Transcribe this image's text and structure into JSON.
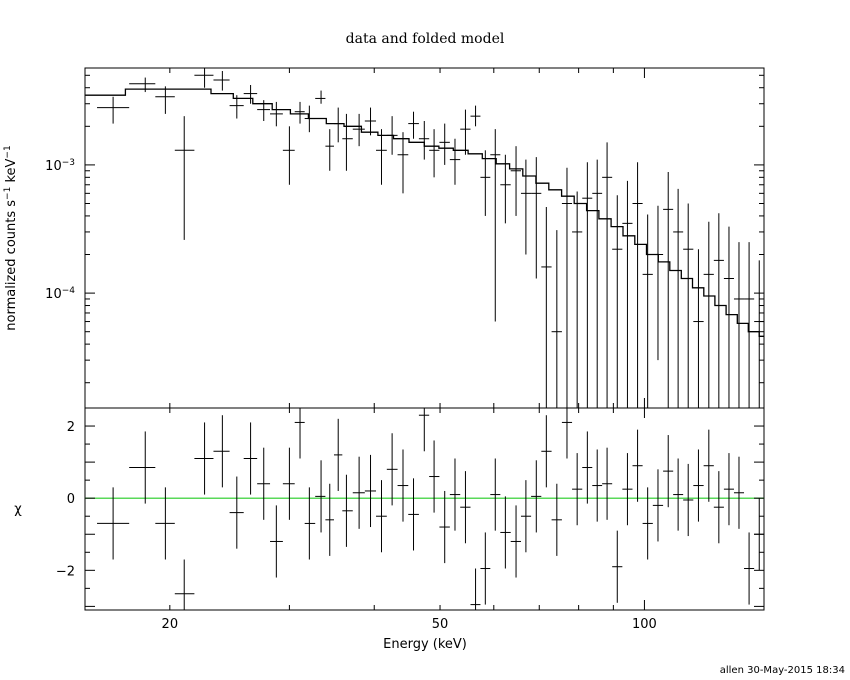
{
  "chart_data": [
    {
      "type": "scatter",
      "panel": "top",
      "title": "data and folded model",
      "xlabel": "",
      "ylabel": "normalized counts s^-1 keV^-1",
      "ylabel_parts": [
        "normalized counts s",
        "−1",
        " keV",
        "−1"
      ],
      "xscale": "log",
      "yscale": "log",
      "xlim": [
        15,
        150
      ],
      "ylim": [
        1.27e-05,
        0.0057
      ],
      "yticks": [
        {
          "value": 0.001,
          "base": "10",
          "exp": "−3"
        },
        {
          "value": 0.0001,
          "base": "10",
          "exp": "−4"
        }
      ],
      "series": [
        {
          "type": "errorbar",
          "x": [
            16.5,
            18.4,
            19.7,
            21.0,
            22.5,
            23.9,
            25.1,
            26.3,
            27.5,
            28.7,
            30.0,
            31.1,
            32.1,
            33.4,
            34.4,
            35.4,
            36.4,
            38.0,
            39.5,
            41.0,
            42.5,
            44.1,
            45.7,
            47.4,
            49.0,
            50.8,
            52.6,
            54.5,
            56.4,
            58.3,
            60.3,
            62.4,
            64.7,
            66.9,
            69.3,
            71.7,
            74.3,
            76.9,
            79.6,
            82.4,
            85.2,
            88.1,
            91.2,
            94.4,
            97.7,
            101.1,
            104.7,
            108.4,
            112.1,
            116.0,
            120.1,
            124.4,
            128.7,
            133.2,
            137.8,
            142.6,
            147.6
          ],
          "y": [
            0.0028,
            0.0043,
            0.0034,
            0.0013,
            0.005,
            0.0046,
            0.0029,
            0.0036,
            0.0027,
            0.0025,
            0.0013,
            0.0026,
            0.0023,
            0.0033,
            0.0014,
            0.0021,
            0.0016,
            0.0019,
            0.0022,
            0.0013,
            0.0017,
            0.0012,
            0.0021,
            0.0016,
            0.0013,
            0.0015,
            0.0011,
            0.0019,
            0.0024,
            0.0008,
            0.0012,
            0.0007,
            0.0009,
            0.0006,
            0.0006,
            0.00016,
            5e-05,
            0.0005,
            0.0003,
            0.00055,
            0.0006,
            0.0008,
            0.00022,
            0.00035,
            0.0005,
            0.00014,
            0.0002,
            0.00045,
            0.0003,
            0.00022,
            6e-05,
            0.00014,
            0.00018,
            0.00013,
            9e-05,
            9e-05,
            6e-05
          ],
          "ylo": [
            0.0021,
            0.0037,
            0.0025,
            0.00026,
            0.004,
            0.0038,
            0.0023,
            0.003,
            0.0022,
            0.002,
            0.0007,
            0.0021,
            0.0018,
            0.003,
            0.0009,
            0.0015,
            0.0009,
            0.0014,
            0.0017,
            0.0007,
            0.0012,
            0.0006,
            0.0016,
            0.0011,
            0.0008,
            0.001,
            0.0007,
            0.0012,
            0.002,
            0.0004,
            6e-05,
            0.00035,
            0.0004,
            0.0002,
            0.00013,
            1.27e-05,
            1.27e-05,
            1.27e-05,
            1.27e-05,
            1.27e-05,
            1.27e-05,
            1.27e-05,
            1.27e-05,
            1.27e-05,
            1.27e-05,
            1.27e-05,
            3e-05,
            1.27e-05,
            1.27e-05,
            1.27e-05,
            1.27e-05,
            1.27e-05,
            1.27e-05,
            1.27e-05,
            1.27e-05,
            1.27e-05,
            1.27e-05
          ],
          "yhi": [
            0.0034,
            0.0048,
            0.0041,
            0.0024,
            0.0058,
            0.0054,
            0.0035,
            0.0042,
            0.0032,
            0.0031,
            0.002,
            0.0031,
            0.0029,
            0.0038,
            0.0019,
            0.0028,
            0.0025,
            0.0025,
            0.0028,
            0.0019,
            0.0024,
            0.0018,
            0.0026,
            0.0022,
            0.0019,
            0.0021,
            0.0016,
            0.0027,
            0.0029,
            0.0013,
            0.0019,
            0.0012,
            0.0014,
            0.0011,
            0.00115,
            0.00047,
            0.00031,
            0.00095,
            0.00062,
            0.00105,
            0.0011,
            0.0015,
            0.00058,
            0.00075,
            0.00105,
            0.00041,
            0.00048,
            0.00088,
            0.00065,
            0.0005,
            0.00022,
            0.00036,
            0.00042,
            0.00033,
            0.00025,
            0.00025,
            0.00018
          ]
        },
        {
          "type": "step",
          "x": [
            15,
            17.2,
            23.0,
            24.8,
            26.5,
            28.3,
            30.1,
            32.0,
            34.0,
            36.1,
            38.3,
            40.5,
            42.7,
            45.0,
            47.4,
            49.8,
            52.3,
            55.0,
            57.7,
            60.5,
            63.3,
            66.2,
            69.2,
            72.3,
            75.5,
            78.8,
            82.2,
            85.7,
            89.3,
            93.0,
            96.8,
            100.7,
            104.8,
            109.0,
            113.3,
            117.7,
            122.3,
            127.0,
            131.9,
            137.0,
            142.2,
            147.6,
            150
          ],
          "y": [
            0.0035,
            0.0039,
            0.0036,
            0.0033,
            0.003,
            0.0027,
            0.0025,
            0.0023,
            0.0021,
            0.002,
            0.0018,
            0.0017,
            0.0016,
            0.0015,
            0.0014,
            0.00135,
            0.0013,
            0.00122,
            0.00112,
            0.00102,
            0.00093,
            0.00082,
            0.00072,
            0.00064,
            0.00057,
            0.0005,
            0.00044,
            0.00038,
            0.00033,
            0.00028,
            0.00024,
            0.0002,
            0.000175,
            0.00015,
            0.00013,
            0.00011,
            9.5e-05,
            8e-05,
            6.8e-05,
            5.8e-05,
            5e-05,
            4.6e-05,
            4.6e-05
          ]
        }
      ]
    },
    {
      "type": "scatter",
      "panel": "bottom",
      "xlabel": "Energy (keV)",
      "ylabel": "χ",
      "xscale": "log",
      "xlim": [
        15,
        150
      ],
      "ylim": [
        -3.1,
        2.5
      ],
      "yticks": [
        2,
        0,
        -2
      ],
      "ytick_labels": [
        "2",
        "0",
        "−2"
      ],
      "xticks": [
        20,
        50,
        100
      ],
      "xtick_labels": [
        "20",
        "50",
        "100"
      ],
      "zero_line_color": "#22cc22",
      "series": [
        {
          "type": "errorbar",
          "x": [
            16.5,
            18.4,
            19.7,
            21.0,
            22.5,
            23.9,
            25.1,
            26.3,
            27.5,
            28.7,
            30.0,
            31.1,
            32.1,
            33.4,
            34.4,
            35.4,
            36.4,
            38.0,
            39.5,
            41.0,
            42.5,
            44.1,
            45.7,
            47.4,
            49.0,
            50.8,
            52.6,
            54.5,
            56.4,
            58.3,
            60.3,
            62.4,
            64.7,
            66.9,
            69.3,
            71.7,
            74.3,
            76.9,
            79.6,
            82.4,
            85.2,
            88.1,
            91.2,
            94.4,
            97.7,
            101.1,
            104.7,
            108.4,
            112.1,
            116.0,
            120.1,
            124.4,
            128.7,
            133.2,
            137.8,
            142.6,
            147.6
          ],
          "y": [
            -0.7,
            0.85,
            -0.7,
            -2.65,
            1.1,
            1.3,
            -0.4,
            1.1,
            0.4,
            -1.2,
            0.4,
            2.1,
            -0.7,
            0.05,
            -0.6,
            1.2,
            -0.35,
            0.15,
            0.2,
            -0.5,
            0.8,
            0.35,
            -0.45,
            2.3,
            0.6,
            -0.8,
            0.1,
            -0.25,
            -2.95,
            -1.95,
            0.1,
            -0.95,
            -1.2,
            -0.5,
            0.05,
            1.3,
            -0.6,
            2.1,
            0.25,
            0.85,
            0.35,
            0.4,
            -1.9,
            0.25,
            0.9,
            -0.7,
            -0.2,
            0.75,
            0.1,
            -0.05,
            0.35,
            0.9,
            -0.25,
            0.25,
            0.15,
            -1.95,
            -1.0
          ],
          "err": [
            1.0,
            1.0,
            1.0,
            0.95,
            1.0,
            1.0,
            1.0,
            1.0,
            1.0,
            1.0,
            1.0,
            1.0,
            1.0,
            1.0,
            1.0,
            1.0,
            1.0,
            1.0,
            1.0,
            1.0,
            1.0,
            1.0,
            1.0,
            1.0,
            1.0,
            1.0,
            1.0,
            1.0,
            1.0,
            1.0,
            1.0,
            1.0,
            1.0,
            1.0,
            1.0,
            1.0,
            1.0,
            1.0,
            1.0,
            1.0,
            1.0,
            1.0,
            1.0,
            1.0,
            1.0,
            1.0,
            1.0,
            1.0,
            1.0,
            1.0,
            1.0,
            1.0,
            1.0,
            1.0,
            1.0,
            1.0,
            1.0
          ]
        }
      ]
    }
  ],
  "footer": "allen 30-May-2015 18:34"
}
